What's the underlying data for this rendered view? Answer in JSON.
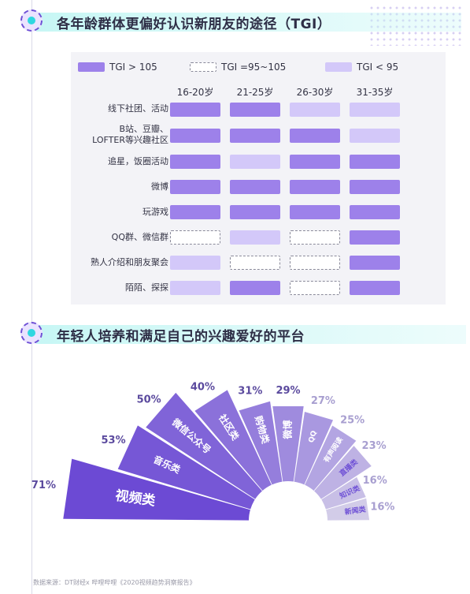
{
  "section1": {
    "title": "各年龄群体更偏好认识新朋友的途径（TGI）"
  },
  "section2": {
    "title": "年轻人培养和满足自己的兴趣爱好的平台"
  },
  "legend": [
    {
      "label": "TGI > 105",
      "level": "high"
    },
    {
      "label": "TGI =95~105",
      "level": "mid"
    },
    {
      "label": "TGI < 95",
      "level": "low"
    }
  ],
  "colors": {
    "high": "#9d81ea",
    "mid": "#ffffff",
    "low": "#d3c8f9",
    "accent": "#6f51d6",
    "teal": "#30d7e0"
  },
  "chart_data": [
    {
      "type": "table",
      "title": "各年龄群体更偏好认识新朋友的途径（TGI）",
      "columns": [
        "16-20岁",
        "21-25岁",
        "26-30岁",
        "31-35岁"
      ],
      "rows": [
        {
          "label": "线下社团、活动",
          "levels": [
            "high",
            "high",
            "low",
            "low"
          ]
        },
        {
          "label": "B站、豆瓣、\nLOFTER等兴趣社区",
          "levels": [
            "high",
            "high",
            "high",
            "low"
          ]
        },
        {
          "label": "追星，饭圈活动",
          "levels": [
            "high",
            "low",
            "high",
            "high"
          ]
        },
        {
          "label": "微博",
          "levels": [
            "high",
            "high",
            "high",
            "high"
          ]
        },
        {
          "label": "玩游戏",
          "levels": [
            "high",
            "high",
            "high",
            "high"
          ]
        },
        {
          "label": "QQ群、微信群",
          "levels": [
            "mid",
            "low",
            "mid",
            "high"
          ]
        },
        {
          "label": "熟人介绍和朋友聚会",
          "levels": [
            "low",
            "mid",
            "mid",
            "high"
          ]
        },
        {
          "label": "陌陌、探探",
          "levels": [
            "low",
            "high",
            "mid",
            "high"
          ]
        }
      ],
      "legend": [
        "TGI > 105",
        "TGI =95~105",
        "TGI < 95"
      ]
    },
    {
      "type": "bar",
      "title": "年轻人培养和满足自己的兴趣爱好的平台",
      "categories": [
        "视频类",
        "音乐类",
        "微信公众号",
        "社区类",
        "购物类",
        "微博",
        "QQ",
        "有声阅读",
        "直播类",
        "知识类",
        "新闻类"
      ],
      "values": [
        71,
        53,
        50,
        40,
        31,
        29,
        27,
        25,
        23,
        16,
        16
      ],
      "value_labels": [
        "71%",
        "53%",
        "50%",
        "40%",
        "31%",
        "29%",
        "27%",
        "25%",
        "23%",
        "16%",
        "16%"
      ],
      "unit": "%"
    }
  ],
  "source": "数据来源：DT财经x 哔哩哔哩《2020视频趋势洞察报告》"
}
